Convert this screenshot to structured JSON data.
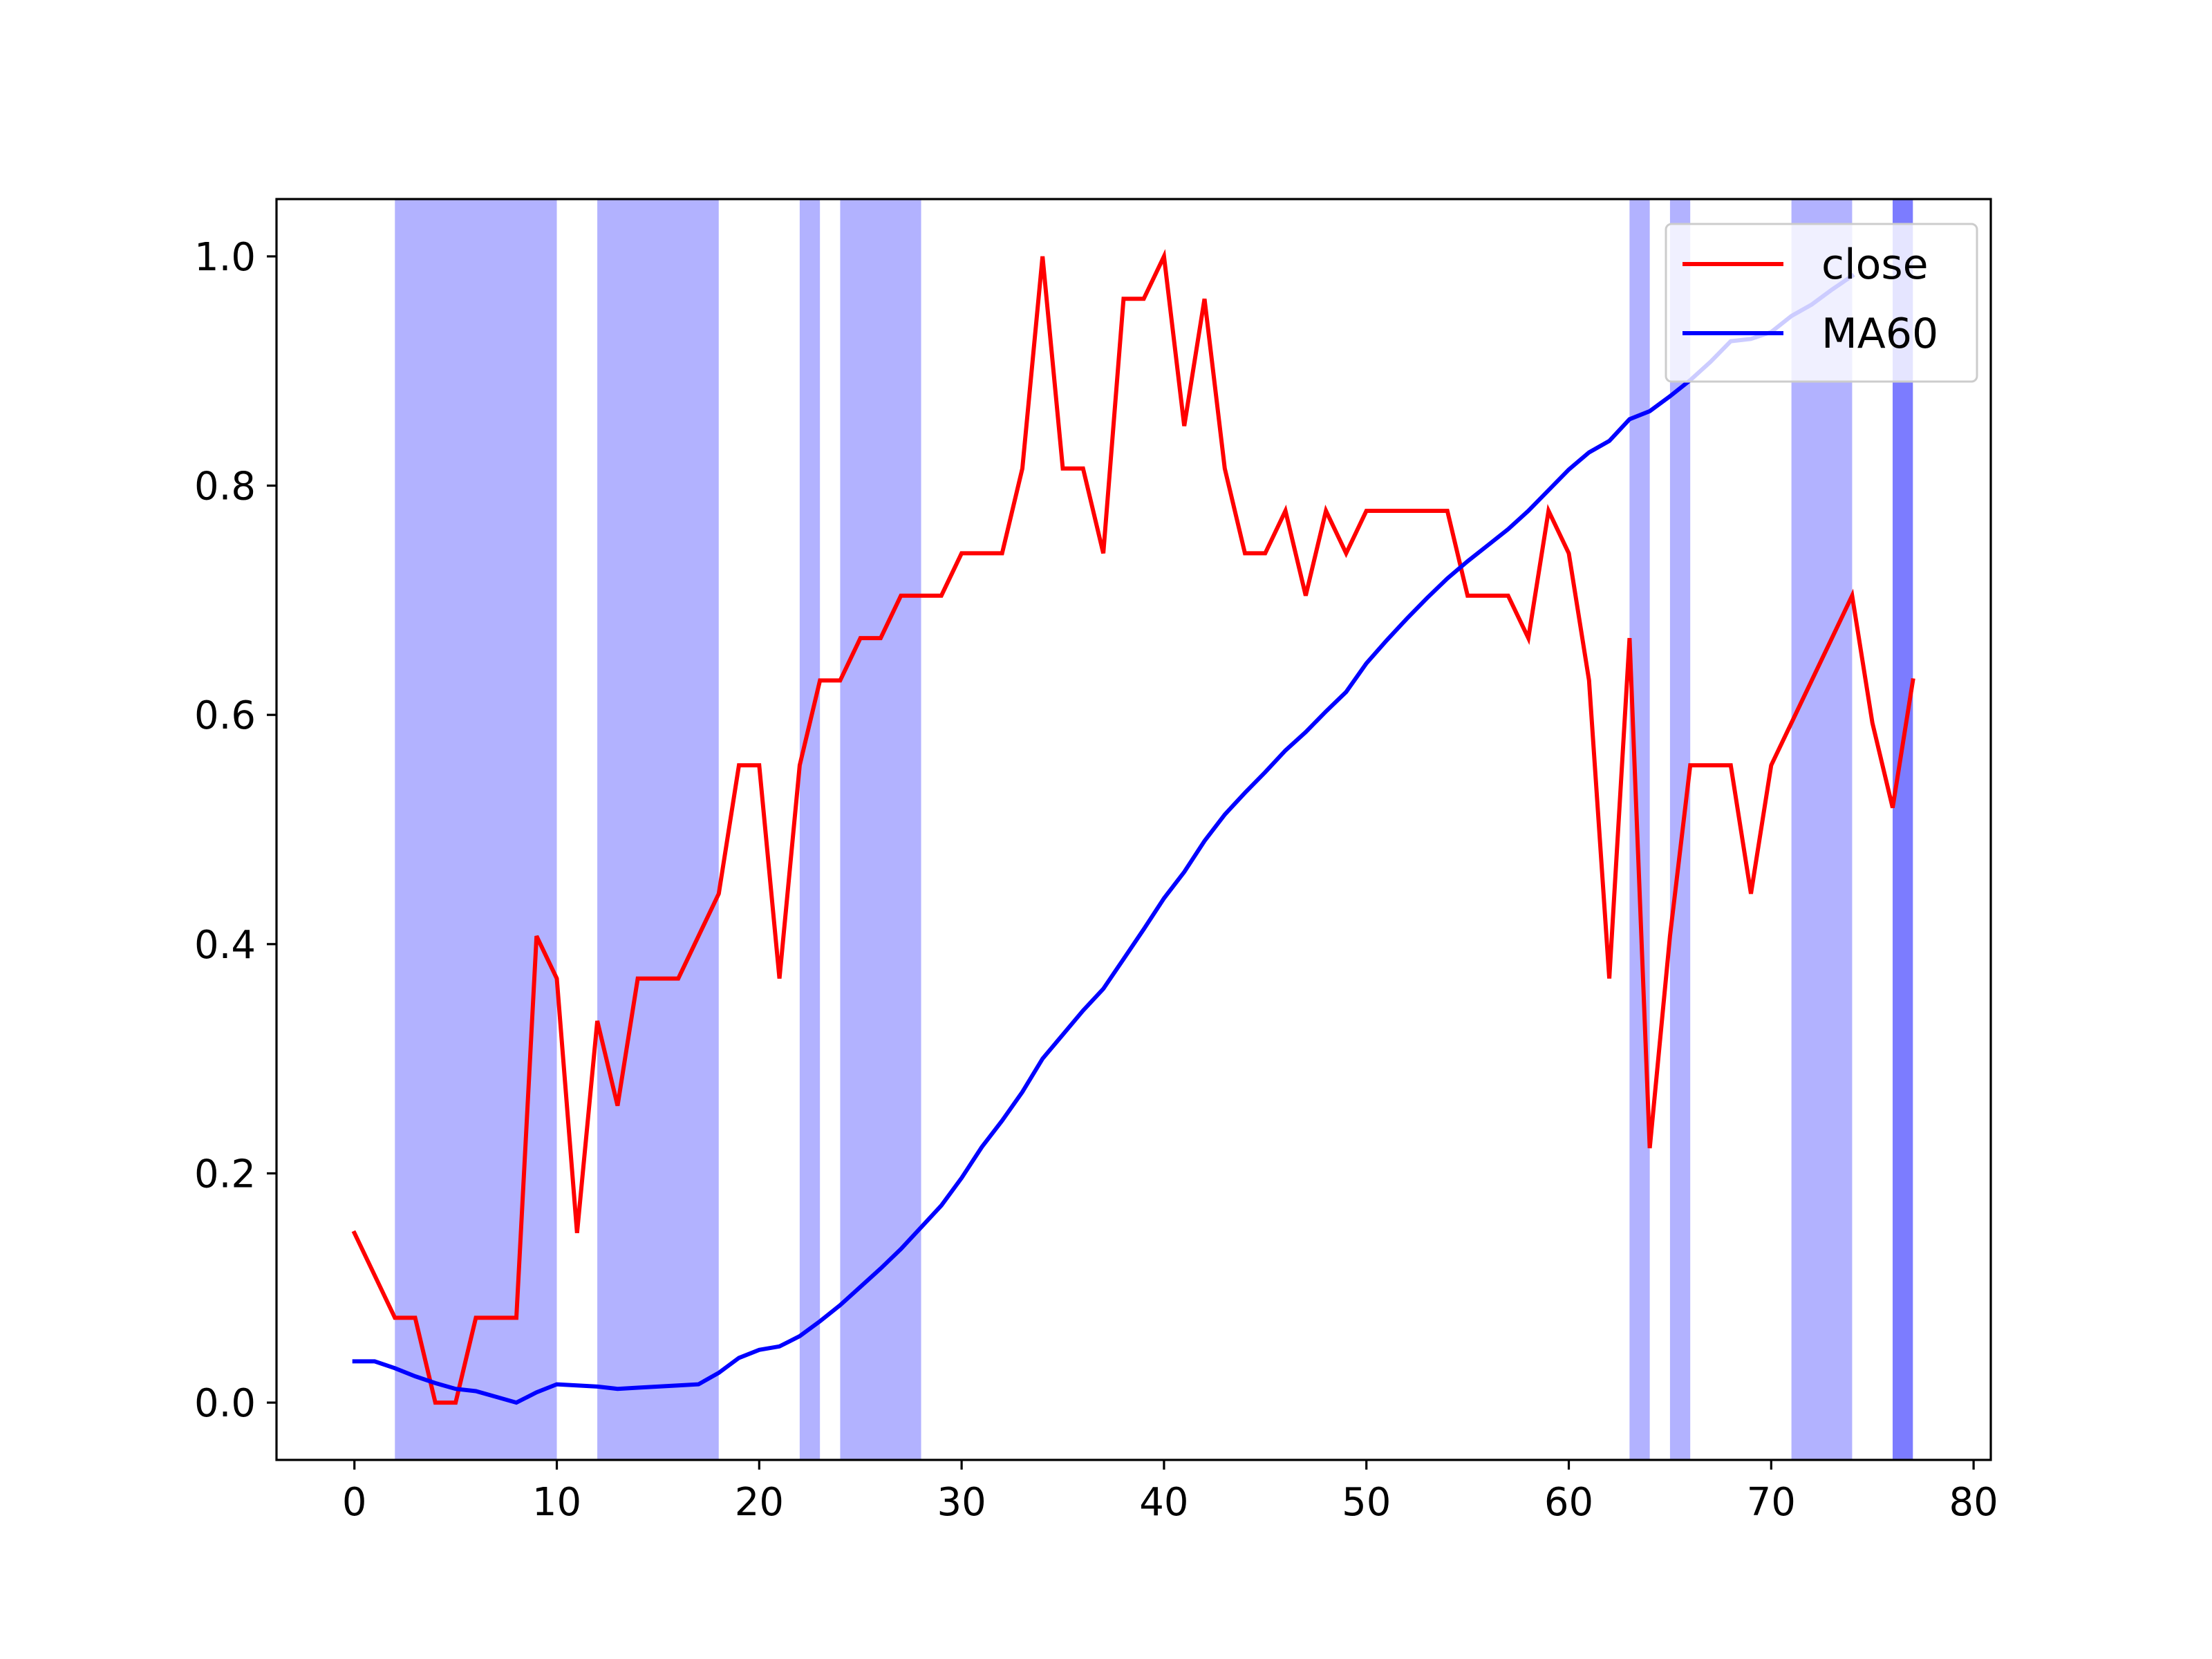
{
  "chart_data": {
    "type": "line",
    "title": "",
    "xlabel": "",
    "ylabel": "",
    "xlim": [
      -3.85,
      80.85
    ],
    "ylim": [
      -0.05,
      1.05
    ],
    "x_ticks": [
      0,
      10,
      20,
      30,
      40,
      50,
      60,
      70,
      80
    ],
    "y_ticks": [
      0.0,
      0.2,
      0.4,
      0.6,
      0.8,
      1.0
    ],
    "x_tick_labels": [
      "0",
      "10",
      "20",
      "30",
      "40",
      "50",
      "60",
      "70",
      "80"
    ],
    "y_tick_labels": [
      "0.0",
      "0.2",
      "0.4",
      "0.6",
      "0.8",
      "1.0"
    ],
    "grid": false,
    "legend_position": "top-right",
    "shaded_spans": [
      {
        "x0": 2,
        "x1": 10
      },
      {
        "x0": 12,
        "x1": 18
      },
      {
        "x0": 22,
        "x1": 23
      },
      {
        "x0": 24,
        "x1": 28
      },
      {
        "x0": 63,
        "x1": 64
      },
      {
        "x0": 65,
        "x1": 66
      },
      {
        "x0": 71,
        "x1": 74
      },
      {
        "x0": 76,
        "x1": 77
      },
      {
        "x0": 76,
        "x1": 77
      }
    ],
    "span_color": "#0000ff",
    "span_alpha": 0.3,
    "series": [
      {
        "name": "close",
        "color": "#ff0000",
        "x": [
          0,
          1,
          2,
          3,
          4,
          5,
          6,
          7,
          8,
          9,
          10,
          11,
          12,
          13,
          14,
          15,
          16,
          17,
          18,
          19,
          20,
          21,
          22,
          23,
          24,
          25,
          26,
          27,
          28,
          29,
          30,
          31,
          32,
          33,
          34,
          35,
          36,
          37,
          38,
          39,
          40,
          41,
          42,
          43,
          44,
          45,
          46,
          47,
          48,
          49,
          50,
          51,
          52,
          53,
          54,
          55,
          56,
          57,
          58,
          59,
          60,
          61,
          62,
          63,
          64,
          65,
          66,
          67,
          68,
          69,
          70,
          71,
          72,
          73,
          74,
          75,
          76,
          77
        ],
        "values": [
          0.148,
          0.111,
          0.074,
          0.074,
          0.0,
          0.0,
          0.074,
          0.074,
          0.074,
          0.407,
          0.37,
          0.148,
          0.333,
          0.259,
          0.37,
          0.37,
          0.37,
          0.407,
          0.444,
          0.556,
          0.556,
          0.37,
          0.556,
          0.63,
          0.63,
          0.667,
          0.667,
          0.704,
          0.704,
          0.704,
          0.741,
          0.741,
          0.741,
          0.815,
          1.0,
          0.815,
          0.815,
          0.741,
          0.963,
          0.963,
          1.0,
          0.852,
          0.963,
          0.815,
          0.741,
          0.741,
          0.778,
          0.704,
          0.778,
          0.741,
          0.778,
          0.778,
          0.778,
          0.778,
          0.778,
          0.704,
          0.704,
          0.704,
          0.667,
          0.778,
          0.741,
          0.63,
          0.37,
          0.667,
          0.222,
          0.407,
          0.556,
          0.556,
          0.556,
          0.444,
          0.556,
          0.593,
          0.63,
          0.667,
          0.704,
          0.593,
          0.519,
          0.63
        ]
      },
      {
        "name": "MA60",
        "color": "#0000ff",
        "x": [
          0,
          1,
          2,
          3,
          4,
          5,
          6,
          7,
          8,
          9,
          10,
          11,
          12,
          13,
          14,
          15,
          16,
          17,
          18,
          19,
          20,
          21,
          22,
          23,
          24,
          25,
          26,
          27,
          28,
          29,
          30,
          31,
          32,
          33,
          34,
          35,
          36,
          37,
          38,
          39,
          40,
          41,
          42,
          43,
          44,
          45,
          46,
          47,
          48,
          49,
          50,
          51,
          52,
          53,
          54,
          55,
          56,
          57,
          58,
          59,
          60,
          61,
          62,
          63,
          64,
          65,
          66,
          67,
          68,
          69,
          70,
          71,
          72,
          73,
          74
        ],
        "values": [
          0.036,
          0.036,
          0.03,
          0.023,
          0.017,
          0.012,
          0.01,
          0.005,
          0.0,
          0.009,
          0.016,
          0.015,
          0.014,
          0.012,
          0.013,
          0.014,
          0.015,
          0.016,
          0.026,
          0.039,
          0.046,
          0.049,
          0.058,
          0.071,
          0.085,
          0.101,
          0.117,
          0.134,
          0.153,
          0.172,
          0.196,
          0.223,
          0.246,
          0.271,
          0.3,
          0.321,
          0.342,
          0.361,
          0.387,
          0.413,
          0.44,
          0.463,
          0.49,
          0.513,
          0.532,
          0.55,
          0.569,
          0.585,
          0.603,
          0.62,
          0.645,
          0.665,
          0.684,
          0.702,
          0.719,
          0.734,
          0.748,
          0.762,
          0.778,
          0.796,
          0.814,
          0.829,
          0.839,
          0.858,
          0.865,
          0.878,
          0.892,
          0.908,
          0.926,
          0.928,
          0.934,
          0.948,
          0.958,
          0.971,
          0.983
        ]
      }
    ]
  }
}
